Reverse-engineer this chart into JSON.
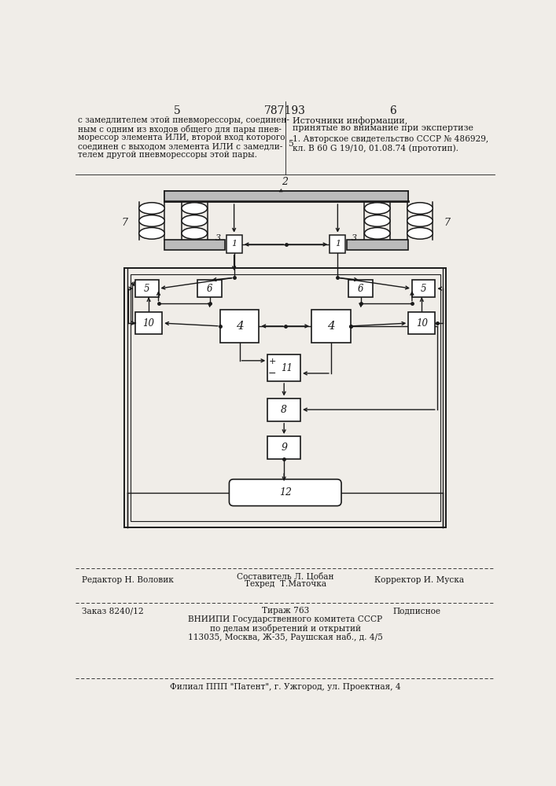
{
  "bg_color": "#f0ede8",
  "line_color": "#1a1a1a",
  "box_color": "#ffffff",
  "page_num_left": "5",
  "page_num_right": "6",
  "patent_number": "787193",
  "top_left_lines": [
    "с замедлителем этой пневморессоры, соединен-",
    "ным с одним из входов общего для пары пнев-",
    "морессор элемента ИЛИ, второй вход которого",
    "соединен с выходом элемента ИЛИ с замедли-",
    "телем другой пневморессоры этой пары."
  ],
  "top_right_title1": "Источники информации,",
  "top_right_title2": "принятые во внимание при экспертизе",
  "top_right_num": "5",
  "top_right_ref1": "1. Авторское свидетельство СССР № 486929,",
  "top_right_ref2": "кл. В 60 G 19/10, 01.08.74 (прототип).",
  "bot_editor": "Редактор Н. Воловик",
  "bot_composer": "Составитель Л. Цобан",
  "bot_techred": "Техред  Т.Маточка",
  "bot_corrector": "Корректор И. Муска",
  "bot_order": "Заказ 8240/12",
  "bot_tirazh": "Тираж 763",
  "bot_podpisnoe": "Подписное",
  "bot_org1": "ВНИИПИ Государственного комитета СССР",
  "bot_org2": "по делам изобретений и открытий",
  "bot_org3": "113035, Москва, Ж-35, Раушская наб., д. 4/5",
  "bot_filial": "Филиал ППП \"Патент\", г. Ужгород, ул. Проектная, 4"
}
